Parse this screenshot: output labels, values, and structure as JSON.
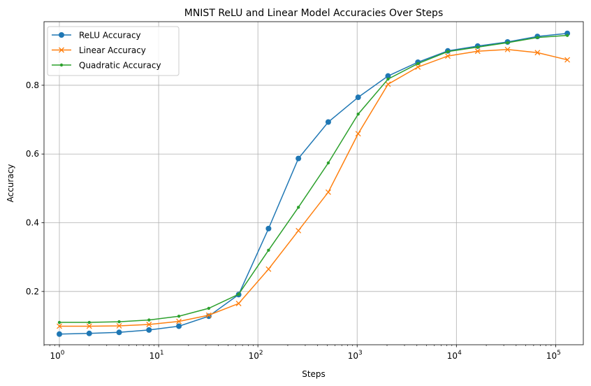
{
  "chart_data": {
    "type": "line",
    "title": "MNIST ReLU and Linear Model Accuracies Over Steps",
    "xlabel": "Steps",
    "ylabel": "Accuracy",
    "xscale": "log",
    "xlim": [
      0.7,
      190000
    ],
    "ylim": [
      0.045,
      0.985
    ],
    "grid": true,
    "legend_position": "top-left",
    "x": [
      1,
      2,
      4,
      8,
      16,
      32,
      64,
      128,
      256,
      512,
      1024,
      2048,
      4096,
      8192,
      16384,
      32768,
      65536,
      131072
    ],
    "x_ticks": [
      {
        "value": 1,
        "base": "10",
        "exp": "0"
      },
      {
        "value": 10,
        "base": "10",
        "exp": "1"
      },
      {
        "value": 100,
        "base": "10",
        "exp": "2"
      },
      {
        "value": 1000,
        "base": "10",
        "exp": "3"
      },
      {
        "value": 10000,
        "base": "10",
        "exp": "4"
      },
      {
        "value": 100000,
        "base": "10",
        "exp": "5"
      }
    ],
    "y_ticks": [
      {
        "value": 0.2,
        "label": "0.2"
      },
      {
        "value": 0.4,
        "label": "0.4"
      },
      {
        "value": 0.6,
        "label": "0.6"
      },
      {
        "value": 0.8,
        "label": "0.8"
      }
    ],
    "series": [
      {
        "name": "ReLU Accuracy",
        "color": "#1f77b4",
        "marker": "circle",
        "values": [
          0.076,
          0.078,
          0.081,
          0.088,
          0.099,
          0.128,
          0.191,
          0.383,
          0.587,
          0.693,
          0.765,
          0.827,
          0.867,
          0.9,
          0.914,
          0.926,
          0.942,
          0.951
        ]
      },
      {
        "name": "Linear Accuracy",
        "color": "#ff7f0e",
        "marker": "x",
        "values": [
          0.099,
          0.099,
          0.1,
          0.104,
          0.113,
          0.131,
          0.165,
          0.265,
          0.377,
          0.489,
          0.659,
          0.803,
          0.853,
          0.885,
          0.899,
          0.904,
          0.895,
          0.874
        ]
      },
      {
        "name": "Quadratic Accuracy",
        "color": "#2ca02c",
        "marker": "dot",
        "values": [
          0.11,
          0.11,
          0.112,
          0.117,
          0.128,
          0.151,
          0.192,
          0.32,
          0.445,
          0.574,
          0.716,
          0.818,
          0.863,
          0.898,
          0.911,
          0.924,
          0.939,
          0.945
        ]
      }
    ]
  }
}
